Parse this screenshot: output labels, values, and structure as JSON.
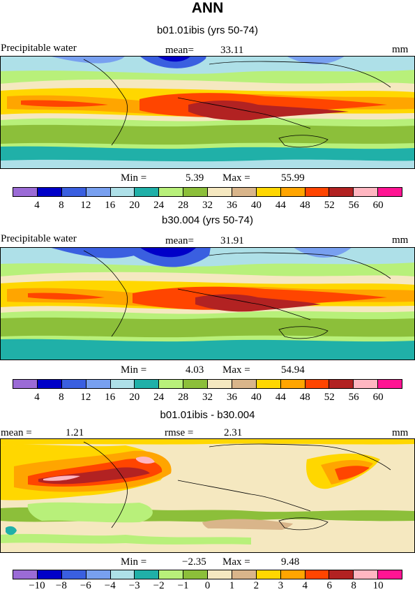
{
  "figure_title": "ANN",
  "panels": [
    {
      "title": "b01.01ibis (yrs 50-74)",
      "variable_label": "Precipitable water",
      "stat_label": "mean=",
      "stat_value": "33.11",
      "units": "mm",
      "min_label": "Min =",
      "min_value": "5.39",
      "max_label": "Max =",
      "max_value": "55.99",
      "colorbar_ticks": [
        "4",
        "8",
        "12",
        "16",
        "20",
        "24",
        "28",
        "32",
        "36",
        "40",
        "44",
        "48",
        "52",
        "56",
        "60"
      ]
    },
    {
      "title": "b30.004 (yrs 50-74)",
      "variable_label": "Precipitable water",
      "stat_label": "mean=",
      "stat_value": "31.91",
      "units": "mm",
      "min_label": "Min =",
      "min_value": "4.03",
      "max_label": "Max =",
      "max_value": "54.94",
      "colorbar_ticks": [
        "4",
        "8",
        "12",
        "16",
        "20",
        "24",
        "28",
        "32",
        "36",
        "40",
        "44",
        "48",
        "52",
        "56",
        "60"
      ]
    },
    {
      "title": "b01.01ibis - b30.004",
      "left_stat_label": "mean =",
      "left_stat_value": "1.21",
      "stat_label": "rmse =",
      "stat_value": "2.31",
      "units": "mm",
      "min_label": "Min =",
      "min_value": "−2.35",
      "max_label": "Max =",
      "max_value": "9.48",
      "colorbar_ticks": [
        "−10",
        "−8",
        "−6",
        "−4",
        "−3",
        "−2",
        "−1",
        "0",
        "1",
        "2",
        "3",
        "4",
        "6",
        "8",
        "10"
      ]
    }
  ],
  "colorbar_colors": [
    "#9b6bd6",
    "#0000c8",
    "#3a5fe0",
    "#78a0f0",
    "#aee0e8",
    "#20b0a8",
    "#b8f07a",
    "#8cbf3a",
    "#f5e8c0",
    "#d9b58a",
    "#ffd700",
    "#ffa500",
    "#ff4500",
    "#b22222",
    "#ffb6c1",
    "#ff1493"
  ]
}
